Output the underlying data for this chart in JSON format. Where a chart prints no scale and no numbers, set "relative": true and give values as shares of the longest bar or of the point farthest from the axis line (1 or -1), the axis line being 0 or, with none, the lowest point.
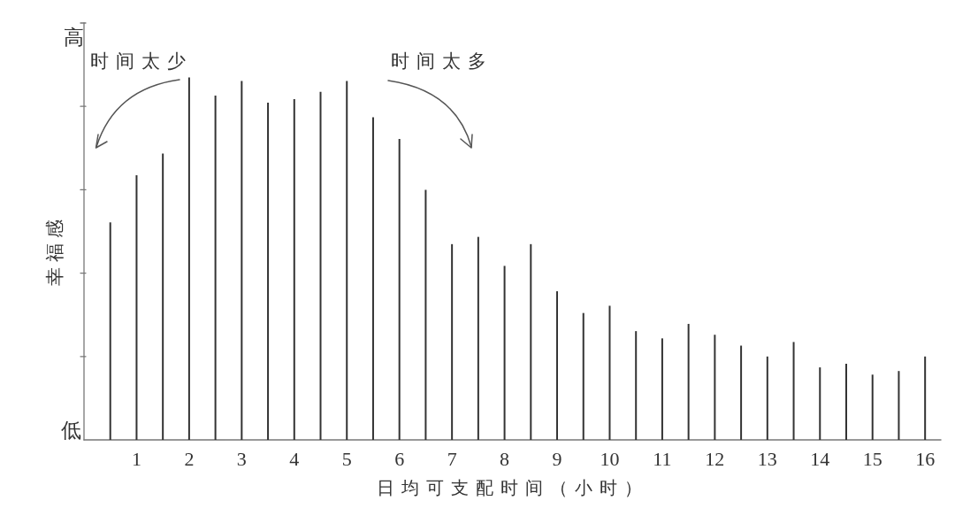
{
  "chart_data": {
    "type": "bar",
    "xlabel": "日均可支配时间（小时）",
    "ylabel": "幸福感",
    "annotations": [
      "高",
      "时间太少",
      "时间太多",
      "低"
    ],
    "relative": true,
    "x": [
      0.5,
      1,
      1.5,
      2,
      2.5,
      3,
      3.5,
      4,
      4.5,
      5,
      5.5,
      6,
      6.5,
      7,
      7.5,
      8,
      8.5,
      9,
      9.5,
      10,
      10.5,
      11,
      11.5,
      12,
      12.5,
      13,
      13.5,
      14,
      14.5,
      15,
      15.5,
      16
    ],
    "values": [
      0.6,
      0.73,
      0.79,
      1,
      0.95,
      0.99,
      0.93,
      0.94,
      0.96,
      0.99,
      0.89,
      0.83,
      0.69,
      0.54,
      0.56,
      0.48,
      0.54,
      0.41,
      0.35,
      0.37,
      0.3,
      0.28,
      0.32,
      0.29,
      0.26,
      0.23,
      0.27,
      0.2,
      0.21,
      0.18,
      0.19,
      0.23
    ],
    "color": "#333333",
    "xlim": [
      0,
      16.3
    ],
    "xticks": [
      1,
      2,
      3,
      4,
      5,
      6,
      7,
      8,
      9,
      10,
      11,
      12,
      13,
      14,
      15,
      16
    ]
  }
}
